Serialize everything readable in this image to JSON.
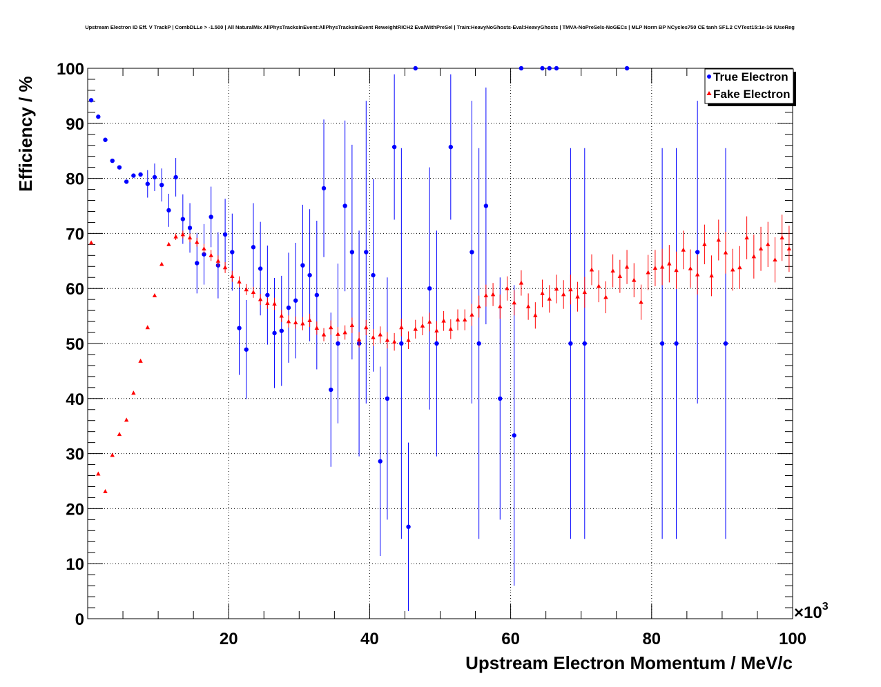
{
  "chart_data": {
    "type": "scatter",
    "title": "Upstream Electron ID Eff. V TrackP | CombDLLe > -1.500 | All NaturalMix AllPhysTracksInEvent:AllPhysTracksInEvent ReweightRICH2 EvalWithPreSel | Train:HeavyNoGhosts-Eval:HeavyGhosts | TMVA-NoPreSels-NoGECs | MLP Norm BP NCycles750 CE tanh SF1.2 CVTest15:1e-16 !UseReg",
    "xlabel": "Upstream Electron Momentum / MeV/c",
    "ylabel": "Efficiency / %",
    "x_exponent_label": "×10",
    "x_exponent_power": "3",
    "xlim": [
      0,
      100000
    ],
    "ylim": [
      0,
      100
    ],
    "grid": true,
    "legend_position": "top-right",
    "x_ticks": [
      20000,
      40000,
      60000,
      80000,
      100000
    ],
    "x_tick_labels": [
      "20",
      "40",
      "60",
      "80",
      "100"
    ],
    "y_ticks": [
      0,
      10,
      20,
      30,
      40,
      50,
      60,
      70,
      80,
      90,
      100
    ],
    "y_tick_labels": [
      "0",
      "10",
      "20",
      "30",
      "40",
      "50",
      "60",
      "70",
      "80",
      "90",
      "100"
    ],
    "series": [
      {
        "name": "True Electron",
        "color": "#0000ff",
        "marker": "circle",
        "points": [
          [
            500,
            94.2,
            0
          ],
          [
            1500,
            91.2,
            0
          ],
          [
            2500,
            87,
            0
          ],
          [
            3500,
            83.2,
            0
          ],
          [
            4500,
            82,
            0
          ],
          [
            5500,
            79.4,
            0
          ],
          [
            6500,
            80.5,
            0
          ],
          [
            7500,
            80.7,
            0
          ],
          [
            8500,
            79,
            2.5
          ],
          [
            9500,
            80.2,
            2.5
          ],
          [
            10500,
            78.8,
            3
          ],
          [
            11500,
            74.2,
            3
          ],
          [
            12500,
            80.2,
            3.5
          ],
          [
            13500,
            72.6,
            4.5
          ],
          [
            14500,
            71,
            4.5
          ],
          [
            15500,
            64.6,
            5.5
          ],
          [
            16500,
            66.2,
            5.5
          ],
          [
            17500,
            73,
            5.5
          ],
          [
            18500,
            64.2,
            6
          ],
          [
            19500,
            69.8,
            6.5
          ],
          [
            20500,
            66.6,
            7
          ],
          [
            21500,
            52.8,
            8.5
          ],
          [
            22500,
            48.9,
            9
          ],
          [
            23500,
            67.5,
            8
          ],
          [
            24500,
            63.6,
            8.5
          ],
          [
            25500,
            58.8,
            9
          ],
          [
            26500,
            51.9,
            10
          ],
          [
            27500,
            52.3,
            10
          ],
          [
            28500,
            56.5,
            10
          ],
          [
            29500,
            57.8,
            10.5
          ],
          [
            30500,
            64.2,
            11
          ],
          [
            31500,
            62.4,
            12
          ],
          [
            32500,
            58.8,
            13.5
          ],
          [
            33500,
            78.2,
            12.5
          ],
          [
            34500,
            41.6,
            14
          ],
          [
            35500,
            50,
            14.5
          ],
          [
            36500,
            75,
            15.5
          ],
          [
            37500,
            66.6,
            19.5
          ],
          [
            38500,
            50,
            20.5
          ],
          [
            39500,
            66.6,
            27.5
          ],
          [
            40500,
            62.4,
            17.5
          ],
          [
            41500,
            28.6,
            17.2
          ],
          [
            42500,
            40,
            22
          ],
          [
            43500,
            85.7,
            13.2
          ],
          [
            44500,
            50,
            35.5
          ],
          [
            45500,
            16.7,
            15.3
          ],
          [
            46500,
            100,
            0
          ],
          [
            48500,
            60,
            22
          ],
          [
            49500,
            50,
            20.5
          ],
          [
            51500,
            85.7,
            13.2
          ],
          [
            54500,
            66.6,
            27.5
          ],
          [
            55500,
            50,
            35.5
          ],
          [
            56500,
            75,
            21.5
          ],
          [
            58500,
            40,
            22
          ],
          [
            60500,
            33.3,
            27.3
          ],
          [
            61500,
            100,
            0
          ],
          [
            64500,
            100,
            0
          ],
          [
            65500,
            100,
            0
          ],
          [
            66500,
            100,
            0
          ],
          [
            68500,
            50,
            35.5
          ],
          [
            70500,
            50,
            35.5
          ],
          [
            76500,
            100,
            0
          ],
          [
            81500,
            50,
            35.5
          ],
          [
            83500,
            50,
            35.5
          ],
          [
            86500,
            66.6,
            27.5
          ],
          [
            90500,
            50,
            35.5
          ]
        ]
      },
      {
        "name": "Fake Electron",
        "color": "#ff0000",
        "marker": "triangle",
        "points": [
          [
            500,
            68.3,
            0
          ],
          [
            1500,
            26.3,
            0
          ],
          [
            2500,
            23.1,
            0
          ],
          [
            3500,
            29.7,
            0
          ],
          [
            4500,
            33.5,
            0
          ],
          [
            5500,
            36.1,
            0
          ],
          [
            6500,
            41,
            0
          ],
          [
            7500,
            46.8,
            0
          ],
          [
            8500,
            52.9,
            0
          ],
          [
            9500,
            58.7,
            0
          ],
          [
            10500,
            64.4,
            0
          ],
          [
            11500,
            68,
            0
          ],
          [
            12500,
            69.4,
            0.6
          ],
          [
            13500,
            69.8,
            0.7
          ],
          [
            14500,
            69.2,
            0.8
          ],
          [
            15500,
            68.4,
            0.8
          ],
          [
            16500,
            67.2,
            0.9
          ],
          [
            17500,
            66,
            1
          ],
          [
            18500,
            65,
            1
          ],
          [
            19500,
            63.8,
            1
          ],
          [
            20500,
            62.2,
            1
          ],
          [
            21500,
            61.2,
            1
          ],
          [
            22500,
            59.8,
            1
          ],
          [
            23500,
            59.3,
            1
          ],
          [
            24500,
            58,
            1
          ],
          [
            25500,
            57.3,
            1
          ],
          [
            26500,
            57.2,
            1.1
          ],
          [
            27500,
            55,
            1.1
          ],
          [
            28500,
            54,
            1.1
          ],
          [
            29500,
            53.8,
            1.1
          ],
          [
            30500,
            53.6,
            1.2
          ],
          [
            31500,
            54.2,
            1.2
          ],
          [
            32500,
            52.8,
            1.2
          ],
          [
            33500,
            51.6,
            1.2
          ],
          [
            34500,
            52.9,
            1.3
          ],
          [
            35500,
            51.7,
            1.3
          ],
          [
            36500,
            52,
            1.3
          ],
          [
            37500,
            53.3,
            1.4
          ],
          [
            38500,
            50.7,
            1.4
          ],
          [
            39500,
            52.9,
            1.4
          ],
          [
            40500,
            51.1,
            1.5
          ],
          [
            41500,
            51.6,
            1.5
          ],
          [
            42500,
            50.6,
            1.5
          ],
          [
            43500,
            50.3,
            1.6
          ],
          [
            44500,
            52.9,
            1.6
          ],
          [
            45500,
            50.6,
            1.6
          ],
          [
            46500,
            52.6,
            1.7
          ],
          [
            47500,
            53.2,
            1.7
          ],
          [
            48500,
            53.9,
            1.7
          ],
          [
            49500,
            52.3,
            1.8
          ],
          [
            50500,
            54.1,
            1.8
          ],
          [
            51500,
            52.6,
            1.8
          ],
          [
            52500,
            54.3,
            1.9
          ],
          [
            53500,
            54.3,
            1.9
          ],
          [
            54500,
            55.2,
            2
          ],
          [
            55500,
            56.7,
            2
          ],
          [
            56500,
            58.7,
            2
          ],
          [
            57500,
            58.9,
            2.1
          ],
          [
            58500,
            56.7,
            2.2
          ],
          [
            59500,
            60,
            2.2
          ],
          [
            60500,
            57.4,
            2.3
          ],
          [
            61500,
            61,
            2.3
          ],
          [
            62500,
            56.7,
            2.4
          ],
          [
            63500,
            55.1,
            2.4
          ],
          [
            64500,
            59.1,
            2.5
          ],
          [
            65500,
            58.1,
            2.5
          ],
          [
            66500,
            59.9,
            2.6
          ],
          [
            67500,
            58.9,
            2.6
          ],
          [
            68500,
            59.8,
            2.7
          ],
          [
            69500,
            58.5,
            2.7
          ],
          [
            70500,
            59.3,
            2.8
          ],
          [
            71500,
            63.4,
            2.8
          ],
          [
            72500,
            60.4,
            2.9
          ],
          [
            73500,
            58.4,
            2.9
          ],
          [
            74500,
            63.2,
            3
          ],
          [
            75500,
            62.2,
            3
          ],
          [
            76500,
            63.9,
            3.1
          ],
          [
            77500,
            61.5,
            3.1
          ],
          [
            78500,
            57.5,
            3.2
          ],
          [
            79500,
            62.9,
            3.2
          ],
          [
            80500,
            63.7,
            3.3
          ],
          [
            81500,
            63.9,
            3.3
          ],
          [
            82500,
            64.5,
            3.4
          ],
          [
            83500,
            63.3,
            3.4
          ],
          [
            84500,
            67,
            3.5
          ],
          [
            85500,
            63.6,
            3.5
          ],
          [
            86500,
            62.5,
            3.6
          ],
          [
            87500,
            68,
            3.6
          ],
          [
            88500,
            62.3,
            3.7
          ],
          [
            89500,
            68.8,
            3.7
          ],
          [
            90500,
            66.5,
            3.8
          ],
          [
            91500,
            63.4,
            3.8
          ],
          [
            92500,
            63.8,
            3.9
          ],
          [
            93500,
            69.2,
            3.9
          ],
          [
            94500,
            65.8,
            4
          ],
          [
            95500,
            67.2,
            4
          ],
          [
            96500,
            68,
            4.1
          ],
          [
            97500,
            65.2,
            4.1
          ],
          [
            98500,
            69.2,
            4.2
          ],
          [
            99500,
            67.2,
            4.2
          ]
        ]
      }
    ]
  }
}
